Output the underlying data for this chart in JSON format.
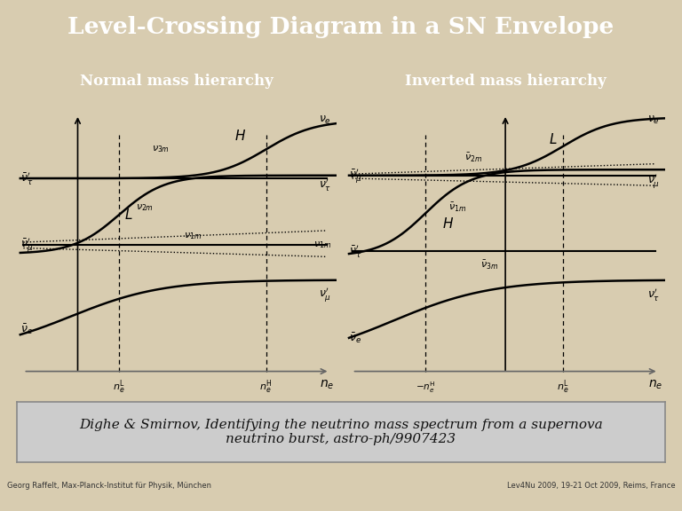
{
  "title": "Level-Crossing Diagram in a SN Envelope",
  "title_color": "#ffffff",
  "title_bg": "#4a7aaa",
  "left_header": "Normal mass hierarchy",
  "right_header": "Inverted mass hierarchy",
  "header_bg": "#4a4a4a",
  "header_color": "#ffffff",
  "panel_bg": "#ffffff",
  "outer_bg": "#d8ccb0",
  "citation": "Dighe & Smirnov, Identifying the neutrino mass spectrum from a supernova\nneutrino burst, astro-ph/9907423",
  "footer_left": "Georg Raffelt, Max-Planck-Institut für Physik, München",
  "footer_right": "Lev4Nu 2009, 19-21 Oct 2009, Reims, France",
  "citation_bg": "#cccccc"
}
